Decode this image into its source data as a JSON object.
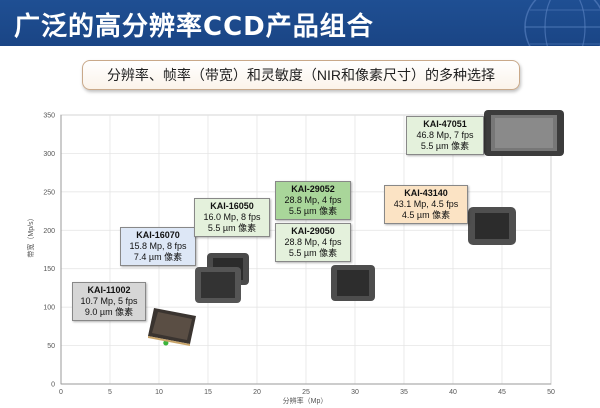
{
  "header": {
    "title": "广泛的高分辨率CCD产品组合"
  },
  "subtitle": "分辨率、帧率（带宽）和灵敏度（NIR和像素尺寸）的多种选择",
  "colors": {
    "header_bg": "#1f4f93",
    "grid": "#e2e2e2",
    "axis": "#9a9a9a"
  },
  "chart_data": {
    "type": "scatter",
    "xlabel": "分辨率（Mp）",
    "ylabel": "带宽（Mp/s）",
    "xlim": [
      0,
      50
    ],
    "ylim": [
      0,
      350
    ],
    "xticks": [
      "0",
      "5",
      "10",
      "15",
      "20",
      "25",
      "30",
      "35",
      "40",
      "45",
      "50"
    ],
    "yticks": [
      "0",
      "50",
      "100",
      "150",
      "200",
      "250",
      "300",
      "350"
    ],
    "grid": true,
    "points": [
      {
        "x": 10.7,
        "y": 53.5
      }
    ],
    "products": [
      {
        "name": "KAI-11002",
        "line1": "10.7 Mp, 5 fps",
        "line2": "9.0 µm 像素",
        "box_color": "#d6d6d6"
      },
      {
        "name": "KAI-16070",
        "line1": "15.8 Mp, 8 fps",
        "line2": "7.4 µm 像素",
        "box_color": "#dde7f6"
      },
      {
        "name": "KAI-16050",
        "line1": "16.0 Mp, 8 fps",
        "line2": "5.5 µm 像素",
        "box_color": "#e4f1dc"
      },
      {
        "name": "KAI-29052",
        "line1": "28.8 Mp, 4 fps",
        "line2": "5.5 µm 像素",
        "box_color": "#a9d69a"
      },
      {
        "name": "KAI-29050",
        "line1": "28.8 Mp, 4 fps",
        "line2": "5.5 µm 像素",
        "box_color": "#e4f1dc"
      },
      {
        "name": "KAI-43140",
        "line1": "43.1 Mp, 4.5 fps",
        "line2": "4.5 µm 像素",
        "box_color": "#fbe3c4"
      },
      {
        "name": "KAI-47051",
        "line1": "46.8 Mp, 7 fps",
        "line2": "5.5 µm 像素",
        "box_color": "#e4f1dc"
      }
    ]
  }
}
